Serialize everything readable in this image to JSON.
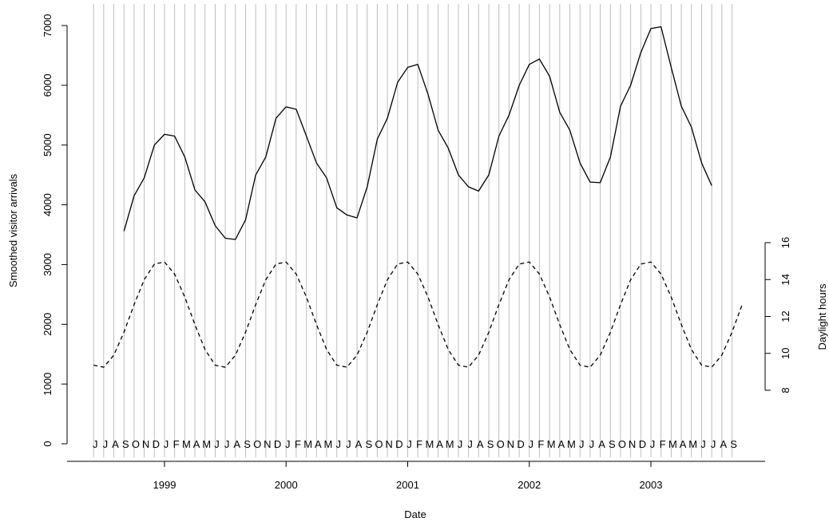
{
  "chart_data": {
    "type": "line",
    "xlabel": "Date",
    "ylabel": "Smoothed visitor arrivals",
    "y2label": "Daylight hours",
    "xlim": [
      1998.199,
      2003.939
    ],
    "xticks": [
      1999,
      2000,
      2001,
      2002,
      2003
    ],
    "ylim": [
      -294,
      7361
    ],
    "yticks": [
      0,
      1000,
      2000,
      3000,
      4000,
      5000,
      6000,
      7000
    ],
    "y2lim": [
      4.15,
      28.93
    ],
    "y2ticks": [
      8,
      10,
      12,
      14,
      16
    ],
    "month_grid": {
      "color": "#bebebe",
      "x": [
        1998.417,
        1998.5,
        1998.583,
        1998.667,
        1998.75,
        1998.833,
        1998.917,
        1999.0,
        1999.083,
        1999.167,
        1999.25,
        1999.333,
        1999.417,
        1999.5,
        1999.583,
        1999.667,
        1999.75,
        1999.833,
        1999.917,
        2000.0,
        2000.083,
        2000.167,
        2000.25,
        2000.333,
        2000.417,
        2000.5,
        2000.583,
        2000.667,
        2000.75,
        2000.833,
        2000.917,
        2001.0,
        2001.083,
        2001.167,
        2001.25,
        2001.333,
        2001.417,
        2001.5,
        2001.583,
        2001.667,
        2001.75,
        2001.833,
        2001.917,
        2002.0,
        2002.083,
        2002.167,
        2002.25,
        2002.333,
        2002.417,
        2002.5,
        2002.583,
        2002.667,
        2002.75,
        2002.833,
        2002.917,
        2003.0,
        2003.083,
        2003.167,
        2003.25,
        2003.333,
        2003.417,
        2003.5,
        2003.583,
        2003.667
      ],
      "labels": [
        "J",
        "J",
        "A",
        "S",
        "O",
        "N",
        "D",
        "J",
        "F",
        "M",
        "A",
        "M",
        "J",
        "J",
        "A",
        "S",
        "O",
        "N",
        "D",
        "J",
        "F",
        "M",
        "A",
        "M",
        "J",
        "J",
        "A",
        "S",
        "O",
        "N",
        "D",
        "J",
        "F",
        "M",
        "A",
        "M",
        "J",
        "J",
        "A",
        "S",
        "O",
        "N",
        "D",
        "J",
        "F",
        "M",
        "A",
        "M",
        "J",
        "J",
        "A",
        "S",
        "O",
        "N",
        "D",
        "J",
        "F",
        "M",
        "A",
        "M",
        "J",
        "J",
        "A",
        "S"
      ]
    },
    "series": [
      {
        "color": "#000000",
        "linestyle": "solid",
        "x": [
          1998.667,
          1998.75,
          1998.833,
          1998.917,
          1999.0,
          1999.083,
          1999.167,
          1999.25,
          1999.333,
          1999.417,
          1999.5,
          1999.583,
          1999.667,
          1999.75,
          1999.833,
          1999.917,
          2000.0,
          2000.083,
          2000.167,
          2000.25,
          2000.333,
          2000.417,
          2000.5,
          2000.583,
          2000.667,
          2000.75,
          2000.833,
          2000.917,
          2001.0,
          2001.083,
          2001.167,
          2001.25,
          2001.333,
          2001.417,
          2001.5,
          2001.583,
          2001.667,
          2001.75,
          2001.833,
          2001.917,
          2002.0,
          2002.083,
          2002.167,
          2002.25,
          2002.333,
          2002.417,
          2002.5,
          2002.583,
          2002.667,
          2002.75,
          2002.833,
          2002.917,
          2003.0,
          2003.083,
          2003.167,
          2003.25,
          2003.333,
          2003.417,
          2003.5
        ],
        "values": [
          3560,
          4150,
          4450,
          5000,
          5180,
          5150,
          4800,
          4250,
          4050,
          3650,
          3440,
          3420,
          3750,
          4500,
          4800,
          5450,
          5640,
          5600,
          5150,
          4700,
          4450,
          3950,
          3830,
          3780,
          4300,
          5100,
          5450,
          6050,
          6300,
          6350,
          5850,
          5250,
          4950,
          4500,
          4300,
          4230,
          4500,
          5150,
          5500,
          6000,
          6350,
          6440,
          6150,
          5550,
          5250,
          4700,
          4380,
          4370,
          4800,
          5650,
          6000,
          6550,
          6950,
          6980,
          6300,
          5650,
          5300,
          4700,
          4320
        ]
      },
      {
        "color": "#000000",
        "linestyle": "dashed",
        "axis": "y2",
        "x": [
          1998.417,
          1998.5,
          1998.583,
          1998.667,
          1998.75,
          1998.833,
          1998.917,
          1999.0,
          1999.083,
          1999.167,
          1999.25,
          1999.333,
          1999.417,
          1999.5,
          1999.583,
          1999.667,
          1999.75,
          1999.833,
          1999.917,
          2000.0,
          2000.083,
          2000.167,
          2000.25,
          2000.333,
          2000.417,
          2000.5,
          2000.583,
          2000.667,
          2000.75,
          2000.833,
          2000.917,
          2001.0,
          2001.083,
          2001.167,
          2001.25,
          2001.333,
          2001.417,
          2001.5,
          2001.583,
          2001.667,
          2001.75,
          2001.833,
          2001.917,
          2002.0,
          2002.083,
          2002.167,
          2002.25,
          2002.333,
          2002.417,
          2002.5,
          2002.583,
          2002.667,
          2002.75,
          2002.833,
          2002.917,
          2003.0,
          2003.083,
          2003.167,
          2003.25,
          2003.333,
          2003.417,
          2003.5,
          2003.583,
          2003.667,
          2003.75
        ],
        "values": [
          9.36,
          9.25,
          9.9,
          11.15,
          12.64,
          13.99,
          14.84,
          14.95,
          14.3,
          13.05,
          11.56,
          10.21,
          9.36,
          9.25,
          9.9,
          11.15,
          12.64,
          13.99,
          14.84,
          14.95,
          14.3,
          13.05,
          11.56,
          10.21,
          9.36,
          9.25,
          9.9,
          11.15,
          12.64,
          13.99,
          14.84,
          14.95,
          14.3,
          13.05,
          11.56,
          10.21,
          9.36,
          9.25,
          9.9,
          11.15,
          12.64,
          13.99,
          14.84,
          14.95,
          14.3,
          13.05,
          11.56,
          10.21,
          9.36,
          9.25,
          9.9,
          11.15,
          12.64,
          13.99,
          14.84,
          14.95,
          14.3,
          13.05,
          11.56,
          10.21,
          9.36,
          9.25,
          9.9,
          11.15,
          12.64
        ]
      }
    ]
  }
}
